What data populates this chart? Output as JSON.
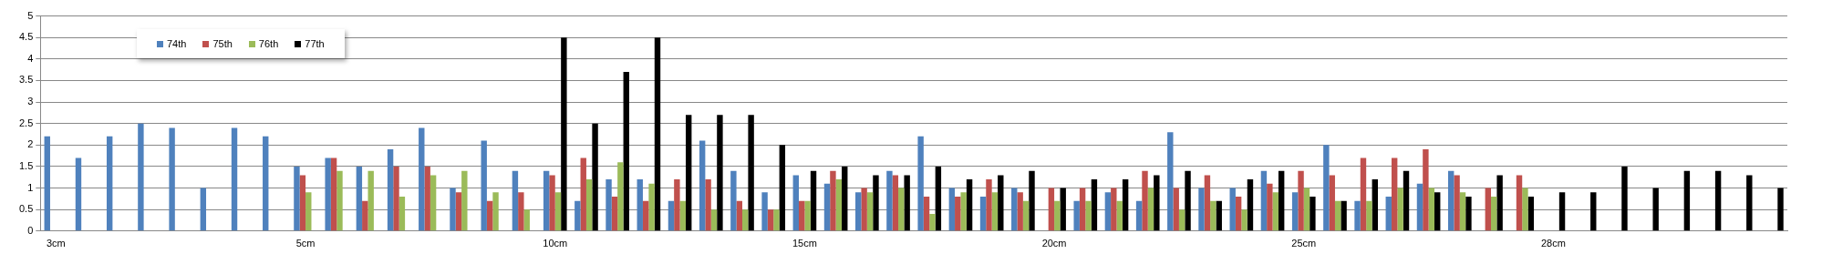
{
  "chart_data": {
    "type": "bar",
    "categories": [
      "3cm",
      null,
      null,
      null,
      null,
      null,
      null,
      null,
      "5cm",
      null,
      null,
      null,
      null,
      null,
      null,
      null,
      "10cm",
      null,
      null,
      null,
      null,
      null,
      null,
      null,
      "15cm",
      null,
      null,
      null,
      null,
      null,
      null,
      null,
      "20cm",
      null,
      null,
      null,
      null,
      null,
      null,
      null,
      "25cm",
      null,
      null,
      null,
      null,
      null,
      null,
      null,
      "28cm",
      null,
      null,
      null,
      null,
      null,
      null,
      null
    ],
    "series": [
      {
        "name": "74th",
        "color": "#4f81bd",
        "values": [
          2.2,
          1.7,
          2.2,
          2.5,
          2.4,
          1.0,
          2.4,
          2.2,
          1.5,
          1.7,
          1.5,
          1.9,
          2.4,
          1.0,
          2.1,
          1.4,
          1.4,
          0.7,
          1.2,
          1.2,
          0.7,
          2.1,
          1.4,
          0.9,
          1.3,
          1.1,
          0.9,
          1.4,
          2.2,
          1.0,
          0.8,
          1.0,
          null,
          0.7,
          0.9,
          0.7,
          2.3,
          1.0,
          1.0,
          1.4,
          0.9,
          2.0,
          0.7,
          0.8,
          1.1,
          1.4,
          null,
          null,
          null,
          null,
          null,
          null,
          null,
          null,
          null,
          null
        ]
      },
      {
        "name": "75th",
        "color": "#c0504d",
        "values": [
          null,
          null,
          null,
          null,
          null,
          null,
          null,
          null,
          1.3,
          1.7,
          0.7,
          1.5,
          1.5,
          0.9,
          0.7,
          0.9,
          1.3,
          1.7,
          0.8,
          0.7,
          1.2,
          1.2,
          0.7,
          0.5,
          0.7,
          1.4,
          1.0,
          1.3,
          0.8,
          0.8,
          1.2,
          0.9,
          1.0,
          1.0,
          1.0,
          1.4,
          1.0,
          1.3,
          0.8,
          1.1,
          1.4,
          1.3,
          1.7,
          1.7,
          1.9,
          1.3,
          1.0,
          1.3,
          null,
          null,
          null,
          null,
          null,
          null,
          null,
          null
        ]
      },
      {
        "name": "76th",
        "color": "#9bbb59",
        "values": [
          null,
          null,
          null,
          null,
          null,
          null,
          null,
          null,
          0.9,
          1.4,
          1.4,
          0.8,
          1.3,
          1.4,
          0.9,
          0.5,
          0.9,
          1.2,
          1.6,
          1.1,
          0.7,
          0.5,
          0.5,
          0.5,
          0.7,
          1.2,
          0.9,
          1.0,
          0.4,
          0.9,
          0.9,
          0.7,
          0.7,
          0.7,
          0.7,
          1.0,
          0.5,
          0.7,
          0.5,
          0.9,
          1.0,
          0.7,
          0.7,
          1.0,
          1.0,
          0.9,
          0.8,
          1.0,
          null,
          null,
          null,
          null,
          null,
          null,
          null,
          null
        ]
      },
      {
        "name": "77th",
        "color": "#000000",
        "values": [
          null,
          null,
          null,
          null,
          null,
          null,
          null,
          null,
          null,
          null,
          null,
          null,
          null,
          null,
          null,
          null,
          4.5,
          2.5,
          3.7,
          4.5,
          2.7,
          2.7,
          2.7,
          2.0,
          1.4,
          1.5,
          1.3,
          1.3,
          1.5,
          1.2,
          1.3,
          1.4,
          1.0,
          1.2,
          1.2,
          1.3,
          1.4,
          0.7,
          1.2,
          1.4,
          0.8,
          0.7,
          1.2,
          1.4,
          0.9,
          0.8,
          1.3,
          0.8,
          0.9,
          0.9,
          1.5,
          1.0,
          1.4,
          1.4,
          1.3,
          1.0
        ]
      }
    ],
    "ylim": [
      0,
      5
    ],
    "yticks": [
      0,
      0.5,
      1,
      1.5,
      2,
      2.5,
      3,
      3.5,
      4,
      4.5,
      5
    ],
    "grid": "y",
    "legend": "top left"
  }
}
